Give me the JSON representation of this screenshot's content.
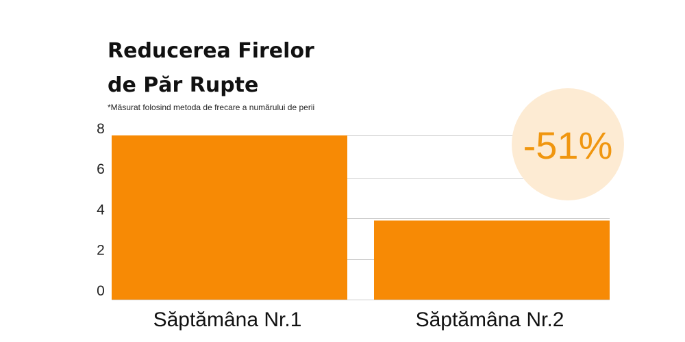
{
  "chart_data": {
    "type": "bar",
    "title_lines": [
      "Reducerea Firelor",
      "de Păr Rupte"
    ],
    "subtitle": "*Măsurat folosind metoda de frecare a numărului de perii",
    "categories": [
      "Săptămâna Nr.1",
      "Săptămâna Nr.2"
    ],
    "values": [
      8.1,
      3.9
    ],
    "yticks": [
      "0",
      "2",
      "4",
      "6",
      "8"
    ],
    "ylim": [
      0,
      8.1
    ],
    "grid": true,
    "annotation": "-51%",
    "colors": {
      "bar": "#f78a05",
      "badge_bg": "#fdebd3",
      "badge_text": "#f0960f",
      "grid": "#cccccc"
    }
  }
}
